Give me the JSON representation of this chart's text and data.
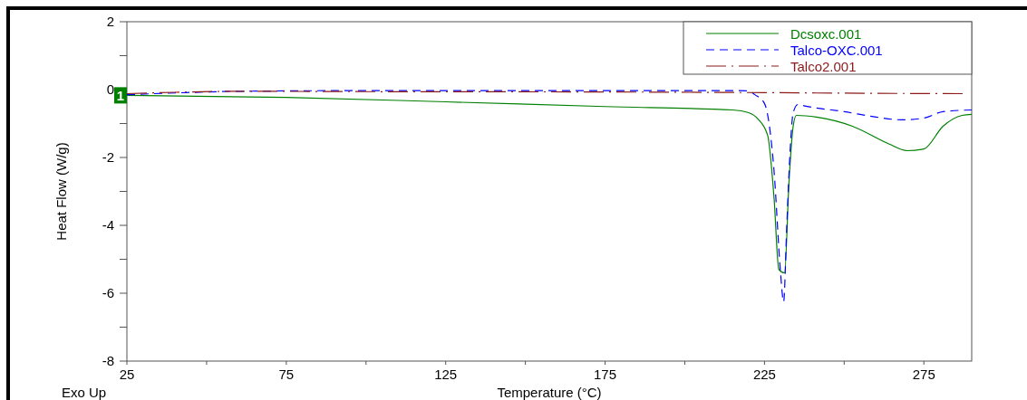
{
  "chart_data": {
    "type": "line",
    "xlabel": "Temperature (°C)",
    "ylabel": "Heat Flow (W/g)",
    "xlim": [
      25,
      290
    ],
    "ylim": [
      -8,
      2
    ],
    "xticks": [
      25,
      {
        "value": 50,
        "label": null
      },
      75,
      {
        "value": 100,
        "label": null
      },
      125,
      {
        "value": 150,
        "label": null
      },
      175,
      {
        "value": 200,
        "label": null
      },
      225,
      {
        "value": 250,
        "label": null
      },
      275
    ],
    "yticks": [
      -8,
      {
        "value": -7,
        "label": null
      },
      -6,
      {
        "value": -5,
        "label": null
      },
      -4,
      {
        "value": -3,
        "label": null
      },
      -2,
      {
        "value": -1,
        "label": null
      },
      0,
      {
        "value": 1,
        "label": null
      },
      2
    ],
    "grid": false,
    "legend": "top right",
    "marker": "none",
    "annotations": [
      {
        "text": "1",
        "x": 25,
        "y": -0.17
      },
      "Exo Up"
    ],
    "series": [
      {
        "name": "Dcsoxc.001",
        "color": "#008000",
        "line_style": "solid",
        "x": [
          25,
          75,
          125,
          175,
          215,
          220,
          223,
          226,
          228,
          229.5,
          231.3,
          232.7,
          234,
          235,
          241.3,
          252.6,
          264,
          269.7,
          275,
          281,
          287,
          290
        ],
        "values": [
          -0.17,
          -0.23,
          -0.36,
          -0.5,
          -0.6,
          -0.68,
          -0.87,
          -1.35,
          -3.2,
          -5.3,
          -5.4,
          -2.7,
          -1.08,
          -0.76,
          -0.81,
          -1.08,
          -1.6,
          -1.8,
          -1.75,
          -1.08,
          -0.76,
          -0.73
        ]
      },
      {
        "name": "Talco-OXC.001",
        "color": "#0000ff",
        "line_style": "dashed",
        "x": [
          25,
          40,
          60,
          100,
          150,
          200,
          215,
          220,
          222,
          225,
          228,
          230,
          231,
          232,
          233,
          234,
          235.5,
          238,
          250,
          260,
          268,
          275,
          281,
          290
        ],
        "values": [
          -0.15,
          -0.1,
          -0.05,
          -0.03,
          -0.03,
          -0.03,
          -0.03,
          -0.04,
          -0.15,
          -0.41,
          -2.4,
          -5.35,
          -6.25,
          -4,
          -1.87,
          -0.68,
          -0.44,
          -0.49,
          -0.65,
          -0.81,
          -0.89,
          -0.84,
          -0.65,
          -0.6
        ]
      },
      {
        "name": "Talco2.001",
        "color": "#8b1a1a",
        "line_style": "dashdot",
        "x": [
          25,
          40,
          60,
          100,
          175,
          225,
          260,
          287.7
        ],
        "values": [
          -0.12,
          -0.08,
          -0.05,
          -0.06,
          -0.07,
          -0.09,
          -0.11,
          -0.12
        ]
      }
    ]
  }
}
